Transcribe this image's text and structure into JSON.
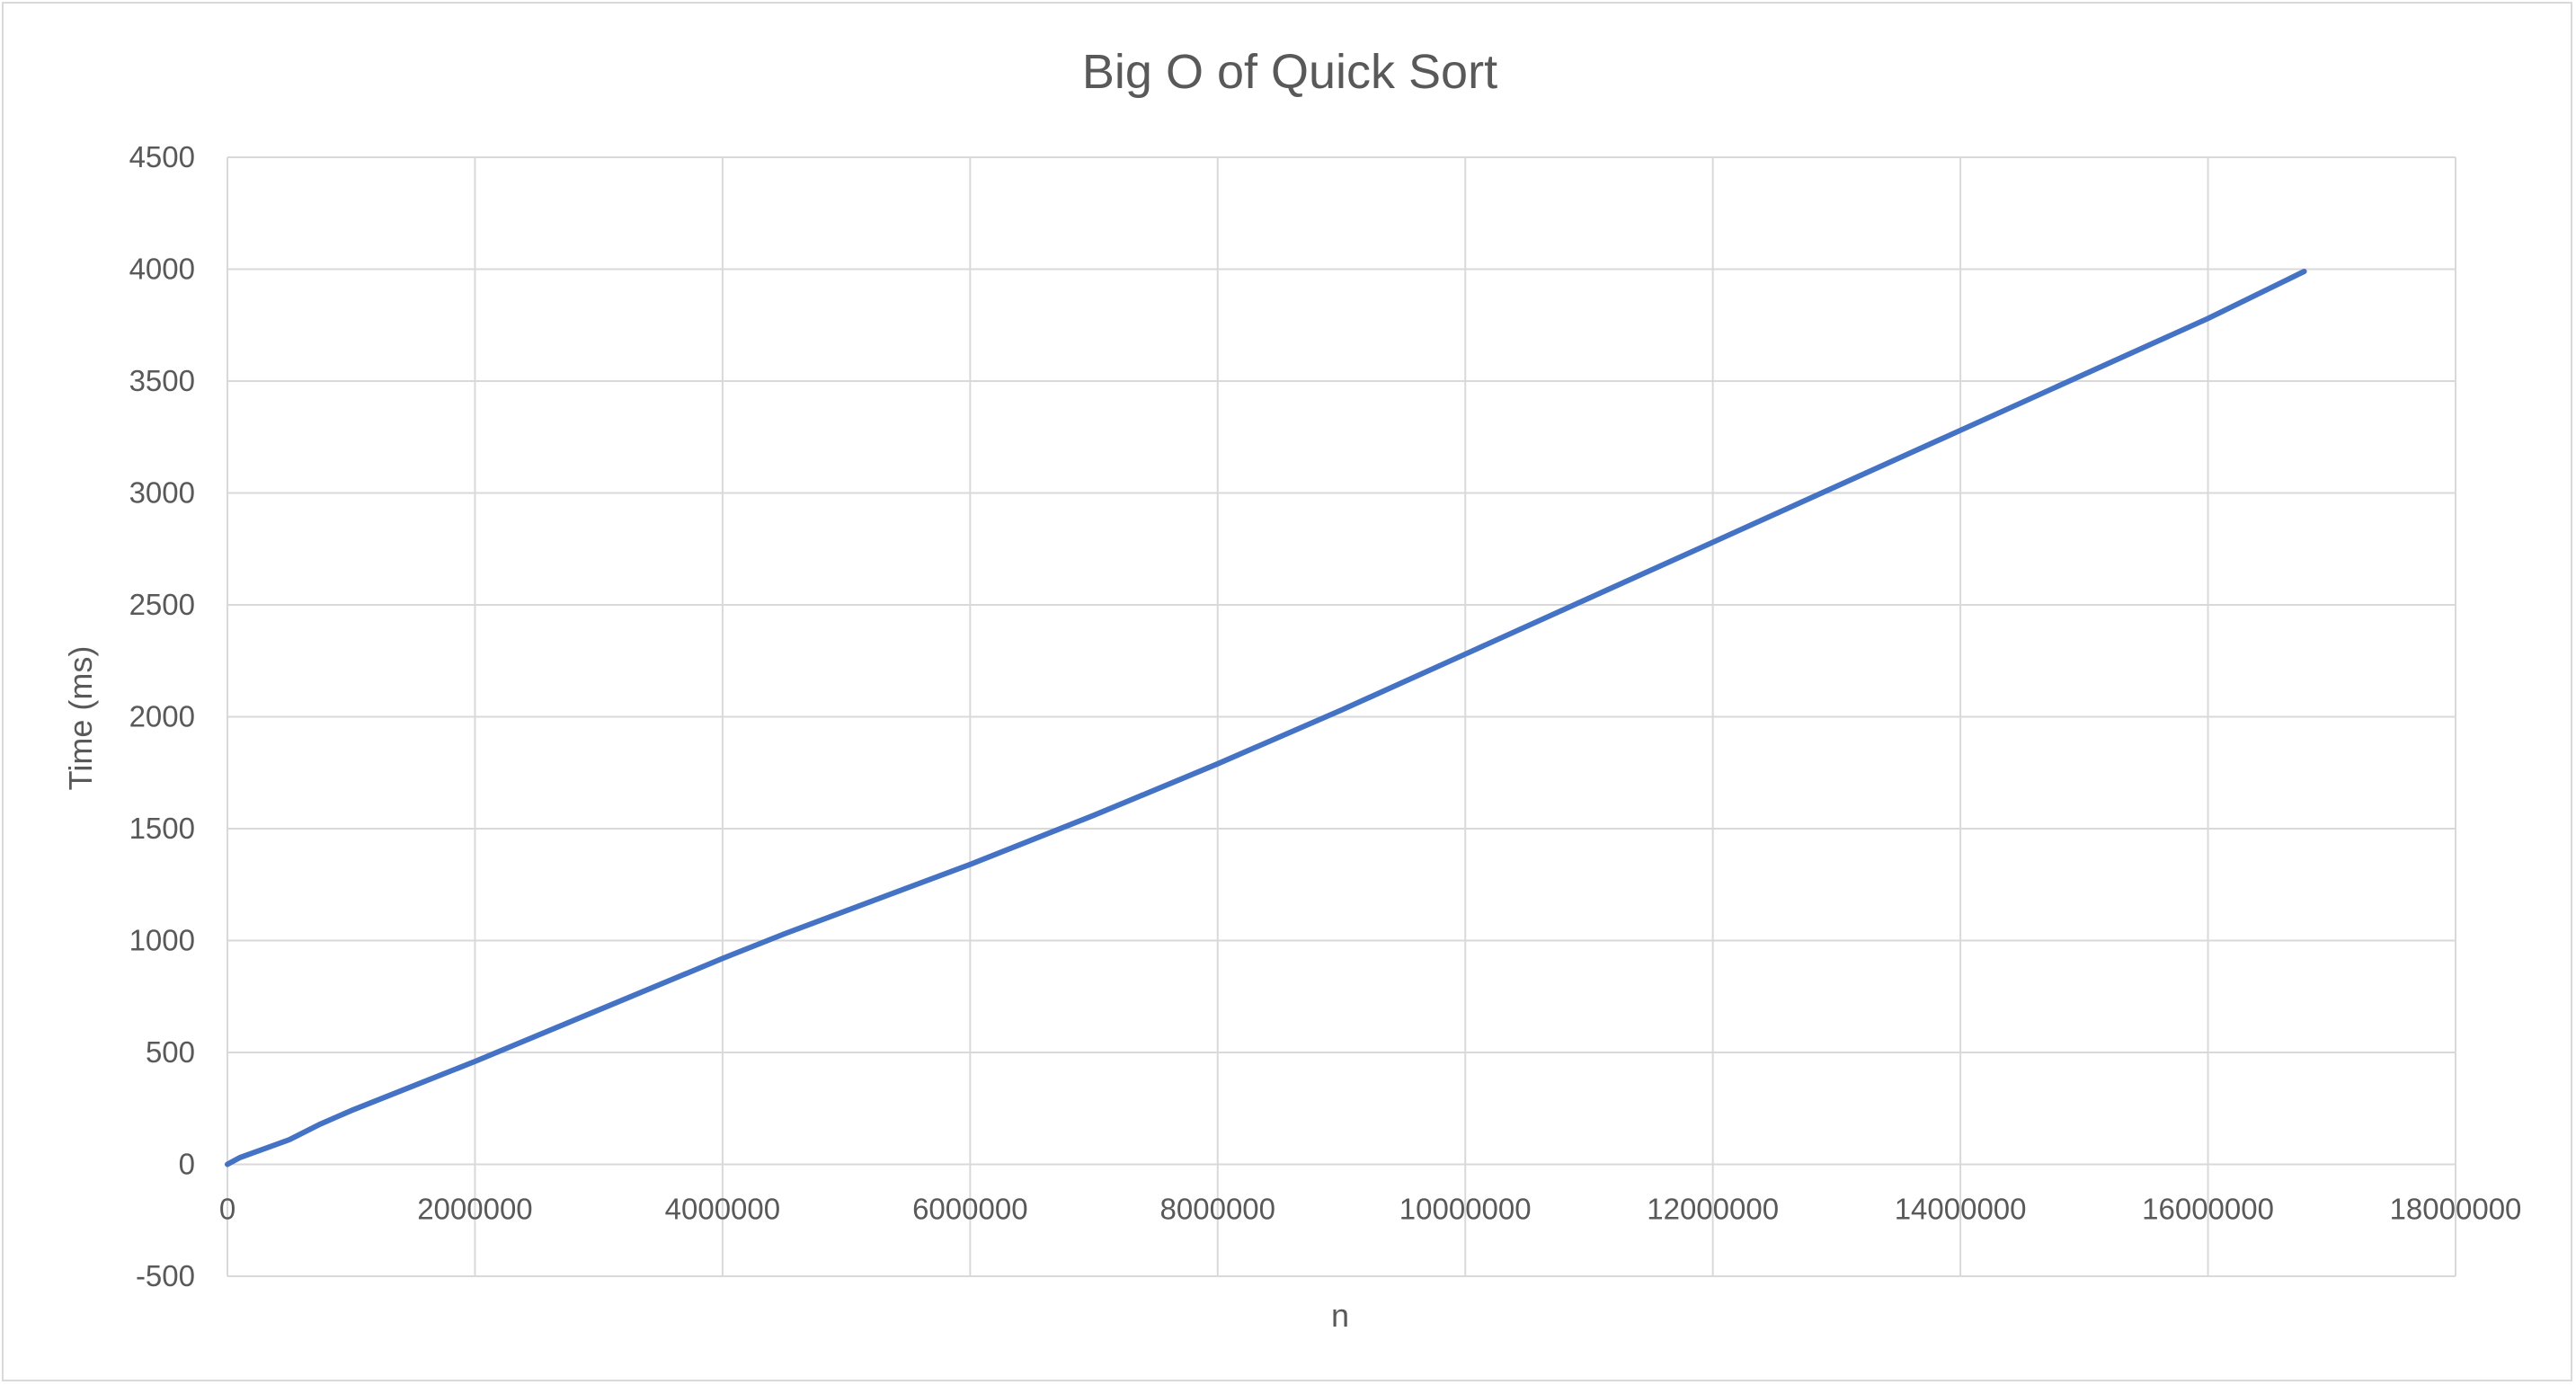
{
  "chart_data": {
    "type": "line",
    "title": "Big O of Quick Sort",
    "xlabel": "n",
    "ylabel": "Time (ms)",
    "xlim": [
      0,
      18000000
    ],
    "ylim": [
      -500,
      4500
    ],
    "x_ticks": [
      0,
      2000000,
      4000000,
      6000000,
      8000000,
      10000000,
      12000000,
      14000000,
      16000000,
      18000000
    ],
    "y_ticks": [
      -500,
      0,
      500,
      1000,
      1500,
      2000,
      2500,
      3000,
      3500,
      4000,
      4500
    ],
    "grid": true,
    "legend": "none",
    "series": [
      {
        "color": "#4472c4",
        "x": [
          0,
          100000,
          250000,
          500000,
          750000,
          1000000,
          1500000,
          2000000,
          3000000,
          4000000,
          4500000,
          6000000,
          7000000,
          8000000,
          9000000,
          10000000,
          11000000,
          12000000,
          13000000,
          14000000,
          15000000,
          16000000,
          16777216
        ],
        "y": [
          0,
          30,
          60,
          110,
          180,
          240,
          350,
          460,
          690,
          920,
          1030,
          1340,
          1560,
          1790,
          2030,
          2280,
          2530,
          2780,
          3030,
          3280,
          3530,
          3780,
          3990
        ]
      }
    ]
  }
}
